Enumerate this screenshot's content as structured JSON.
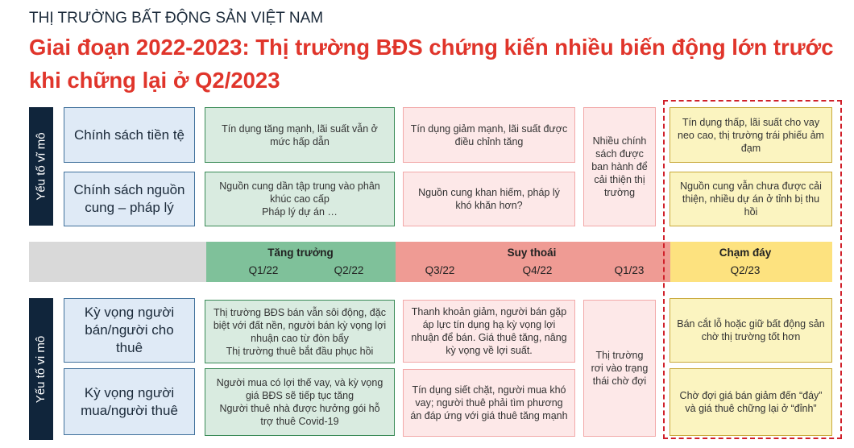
{
  "header": {
    "supertitle": "THỊ TRƯỜNG BẤT ĐỘNG SẢN VIỆT NAM",
    "title": "Giai đoạn 2022-2023: Thị trường BĐS chứng kiến nhiều biến động lớn trước khi chững lại ở Q2/2023"
  },
  "colors": {
    "title": "#e0352b",
    "growth": "#7fc19a",
    "recession": "#ef9b94",
    "bottom": "#fde27f",
    "neutral": "#d9d9d9",
    "highlight": "#d0202a"
  },
  "macro": {
    "side_label": "Yếu tố vĩ mô",
    "rows": [
      {
        "label": "Chính sách tiền tệ",
        "growth": "Tín dụng tăng mạnh, lãi suất vẫn ở mức hấp dẫn",
        "recession": "Tín dụng giảm mạnh, lãi suất được điều chỉnh tăng",
        "bottom": "Tín dụng thấp, lãi suất cho vay neo cao, thị trường trái phiếu ảm đạm"
      },
      {
        "label": "Chính sách nguồn cung – pháp lý",
        "growth": "Nguồn cung dần tập trung vào phân khúc cao cấp\nPháp lý dự án …",
        "recession": "Nguồn cung khan hiếm, pháp lý khó khăn hơn?",
        "bottom": "Nguồn cung vẫn chưa được cải thiện, nhiều dự án ở tỉnh bị thu hồi"
      }
    ],
    "q1_23": "Nhiều chính sách được ban hành để cải thiện thị trường"
  },
  "timeline": {
    "growth": {
      "label": "Tăng trưởng",
      "quarters": [
        "Q1/22",
        "Q2/22"
      ]
    },
    "recession": {
      "label": "Suy thoái",
      "quarters": [
        "Q3/22",
        "Q4/22",
        "Q1/23"
      ]
    },
    "bottom": {
      "label": "Chạm đáy",
      "quarters": [
        "Q2/23"
      ]
    }
  },
  "micro": {
    "side_label": "Yếu tố vi mô",
    "rows": [
      {
        "label": "Kỳ vọng người bán/người cho thuê",
        "growth": "Thị trường BĐS bán vẫn sôi động, đặc biệt với đất nền, người bán kỳ vọng lợi nhuận cao từ đòn bẩy\nThị trường thuê bắt đầu phục hồi",
        "recession": "Thanh khoản giảm, người bán gặp áp lực tín dụng hạ kỳ vọng lợi nhuận để bán. Giá thuê tăng, nâng kỳ vọng về lợi suất.",
        "bottom": "Bán cắt lỗ hoặc giữ bất động sản chờ thị trường tốt hơn"
      },
      {
        "label": "Kỳ vọng người mua/người thuê",
        "growth": "Người mua có lợi thế vay, và kỳ vọng giá BĐS sẽ tiếp tục tăng\nNgười thuê nhà được hưởng gói hỗ trợ thuê Covid-19",
        "recession": "Tín dụng siết chặt, người mua khó vay; người thuê phải tìm phương án đáp ứng với giá thuê tăng mạnh",
        "bottom": "Chờ đợi giá bán giảm đến “đáy” và giá thuê chững lại ở “đỉnh”"
      }
    ],
    "q1_23": "Thị trường rơi vào trạng thái chờ đợi"
  }
}
